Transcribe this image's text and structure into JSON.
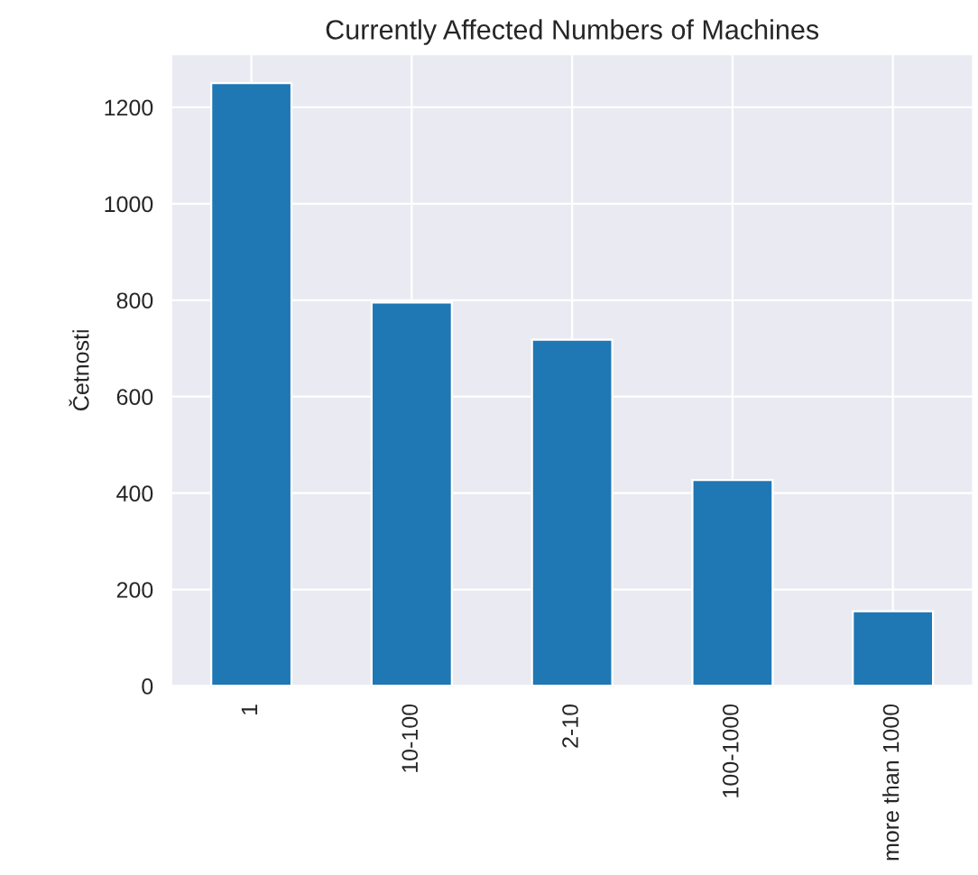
{
  "chart_data": {
    "type": "bar",
    "title": "Currently Affected Numbers of Machines",
    "ylabel": "Četnosti",
    "categories": [
      "1",
      "10-100",
      "2-10",
      "100-1000",
      "more than 1000"
    ],
    "values": [
      1250,
      795,
      718,
      427,
      155
    ],
    "color": "#1f77b4",
    "ylim": [
      0,
      1310
    ],
    "yticks": [
      0,
      200,
      400,
      600,
      800,
      1000,
      1200
    ],
    "grid": true
  }
}
